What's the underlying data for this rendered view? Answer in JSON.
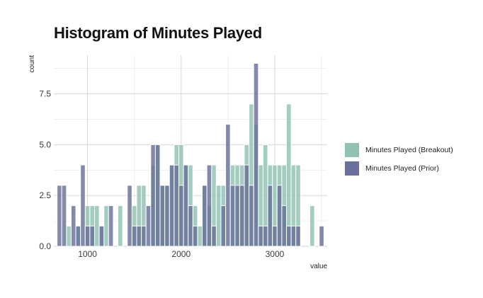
{
  "chart_data": {
    "type": "histogram",
    "title": "Histogram of Minutes Played",
    "xlabel": "value",
    "ylabel": "count",
    "xlim": [
      640,
      3560
    ],
    "ylim": [
      0,
      9.4
    ],
    "x_ticks": [
      1000,
      2000,
      3000
    ],
    "x_tick_labels": [
      "1000",
      "2000",
      "3000"
    ],
    "y_ticks": [
      0,
      2.5,
      5,
      7.5
    ],
    "y_tick_labels": [
      "0.0",
      "2.5",
      "5.0",
      "7.5"
    ],
    "grid": true,
    "legend_position": "right",
    "bin_width": 50,
    "bin_start": 675,
    "bins": [
      700,
      750,
      800,
      850,
      900,
      950,
      1000,
      1050,
      1100,
      1150,
      1200,
      1250,
      1300,
      1350,
      1400,
      1450,
      1500,
      1550,
      1600,
      1650,
      1700,
      1750,
      1800,
      1850,
      1900,
      1950,
      2000,
      2050,
      2100,
      2150,
      2200,
      2250,
      2300,
      2350,
      2400,
      2450,
      2500,
      2550,
      2600,
      2650,
      2700,
      2750,
      2800,
      2850,
      2900,
      2950,
      3000,
      3050,
      3100,
      3150,
      3200,
      3250,
      3300,
      3350,
      3400,
      3450,
      3500
    ],
    "series": [
      {
        "name": "Minutes Played (Breakout)",
        "color": "#8fc2b2",
        "counts": [
          0,
          0,
          1,
          0,
          1,
          0,
          2,
          2,
          2,
          1,
          2,
          0,
          0,
          2,
          0,
          0,
          2,
          3,
          3,
          0,
          4,
          5,
          3,
          3,
          4,
          5,
          5,
          4,
          4,
          2,
          1,
          3,
          2,
          4,
          3,
          3,
          0,
          4,
          4,
          4,
          5,
          7,
          6,
          4,
          5,
          4,
          4,
          4,
          4,
          7,
          4,
          4,
          0,
          0,
          2,
          0,
          0
        ]
      },
      {
        "name": "Minutes Played (Prior)",
        "color": "#69709a",
        "counts": [
          3,
          3,
          0,
          2,
          1,
          4,
          1,
          1,
          0,
          1,
          0,
          2,
          0,
          0,
          0,
          3,
          1,
          1,
          1,
          2,
          5,
          5,
          3,
          3,
          4,
          4,
          3,
          4,
          2,
          1,
          0,
          3,
          4,
          1,
          0,
          2,
          6,
          3,
          3,
          3,
          4,
          3,
          9,
          1,
          1,
          3,
          1,
          3,
          2,
          1,
          1,
          1,
          0,
          0,
          0,
          0,
          1
        ]
      }
    ]
  }
}
